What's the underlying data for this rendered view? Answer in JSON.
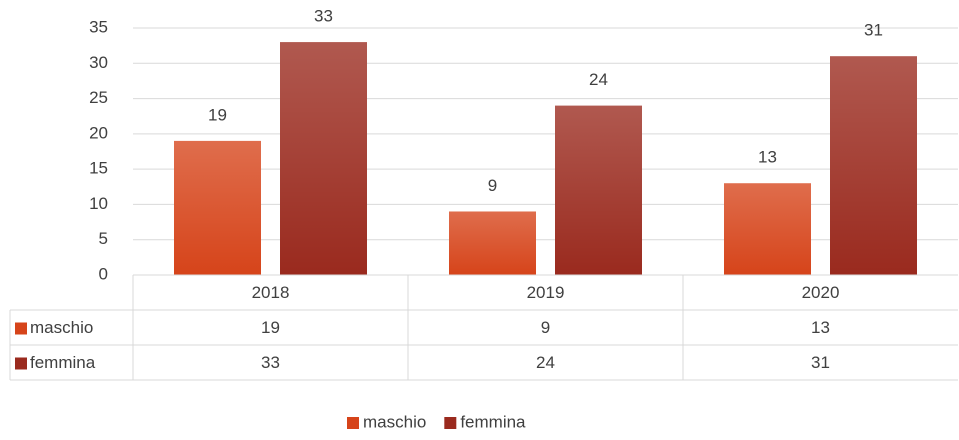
{
  "chart_data": {
    "type": "bar",
    "categories": [
      "2018",
      "2019",
      "2020"
    ],
    "series": [
      {
        "name": "maschio",
        "color": "#d6441a",
        "values": [
          19,
          9,
          13
        ]
      },
      {
        "name": "femmina",
        "color": "#9a2a1e",
        "values": [
          33,
          24,
          31
        ]
      }
    ],
    "ylim": [
      0,
      35
    ],
    "yticks": [
      0,
      5,
      10,
      15,
      20,
      25,
      30,
      35
    ],
    "grid": true,
    "data_table": true,
    "legend": "bottom"
  }
}
